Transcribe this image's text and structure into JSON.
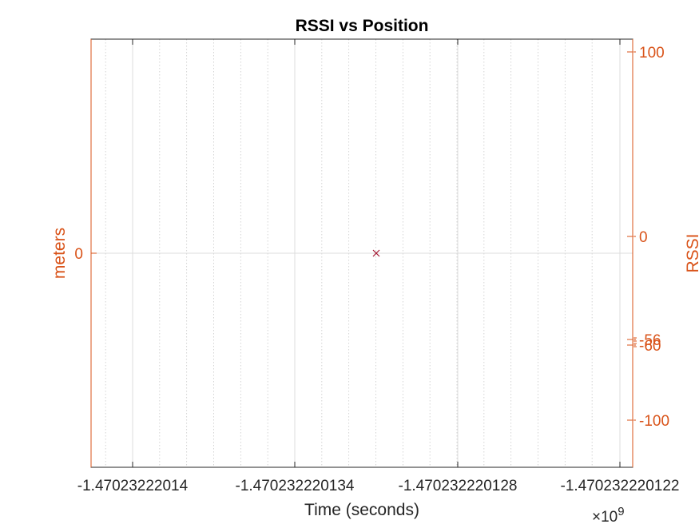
{
  "chart_data": {
    "type": "scatter",
    "title": "RSSI vs Position",
    "xlabel": "Time (seconds)",
    "ylabel_left": "meters",
    "ylabel_right": "RSSI",
    "x_exponent_prefix": "×10",
    "x_exponent_power": "9",
    "x_ticks": [
      "-1.47023222014",
      "-1.470232220134",
      "-1.470232220128",
      "-1.470232220122"
    ],
    "y_left_ticks": [
      "0"
    ],
    "y_right_ticks": [
      "100",
      "0",
      "-56",
      "-60",
      "-100"
    ],
    "grid": true,
    "axis_color": "#d95319",
    "marker_color": "#a2142f",
    "points": [
      {
        "x": -1.470232220131,
        "y": 0,
        "marker": "x"
      }
    ]
  }
}
